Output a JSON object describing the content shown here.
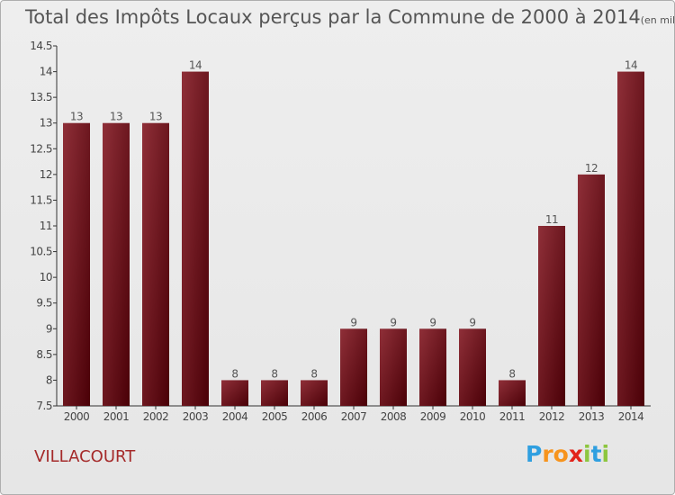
{
  "chart_data": {
    "type": "bar",
    "title": "Total des Impôts Locaux perçus par la Commune de 2000 à 2014",
    "unit": "(en milliers d'€)",
    "categories": [
      "2000",
      "2001",
      "2002",
      "2003",
      "2004",
      "2005",
      "2006",
      "2007",
      "2008",
      "2009",
      "2010",
      "2011",
      "2012",
      "2013",
      "2014"
    ],
    "values": [
      13,
      13,
      13,
      14,
      8,
      8,
      8,
      9,
      9,
      9,
      9,
      8,
      11,
      12,
      14
    ],
    "value_labels": [
      "13",
      "13",
      "13",
      "14",
      "8",
      "8",
      "8",
      "9",
      "9",
      "9",
      "9",
      "8",
      "11",
      "12",
      "14"
    ],
    "yticks": [
      "7.5",
      "8",
      "8.5",
      "9",
      "9.5",
      "10",
      "10.5",
      "11",
      "11.5",
      "12",
      "12.5",
      "13",
      "13.5",
      "14",
      "14.5"
    ],
    "ylim": [
      7.5,
      14.5
    ],
    "xlabel": "",
    "ylabel": "",
    "grid": false,
    "bar_color": "#6b1a1f"
  },
  "commune": "VILLACOURT",
  "logo": {
    "letters": [
      "P",
      "r",
      "o",
      "x",
      "i",
      "t",
      "i"
    ],
    "colors": [
      "#2f9fe0",
      "#f7941d",
      "#f7941d",
      "#e2231a",
      "#8dc63f",
      "#2f9fe0",
      "#8dc63f"
    ]
  }
}
